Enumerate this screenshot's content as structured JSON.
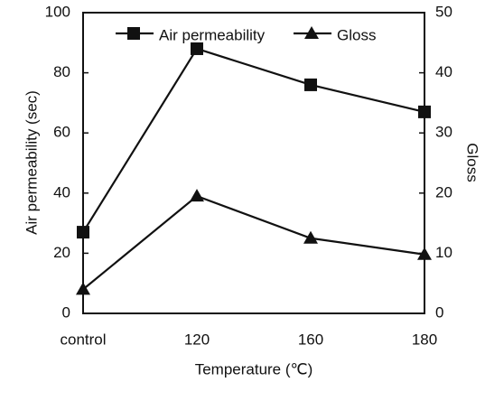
{
  "chart_data": {
    "type": "line",
    "categories": [
      "control",
      "120",
      "160",
      "180"
    ],
    "x_label": "Temperature (℃)",
    "y_label": "Air permeability (sec)",
    "y2_label": "Gloss",
    "ylim": [
      0,
      100
    ],
    "yticks": [
      0,
      20,
      40,
      60,
      80,
      100
    ],
    "y2lim": [
      0,
      50
    ],
    "y2ticks": [
      0,
      10,
      20,
      30,
      40,
      50
    ],
    "legend": "top",
    "series": [
      {
        "name": "Air permeability",
        "color": "#111111",
        "marker": "square",
        "values": [
          27,
          88,
          76,
          67
        ]
      },
      {
        "name": "Gloss",
        "color": "#111111",
        "marker": "triangle",
        "axis": "y2",
        "values": [
          4,
          19.5,
          12.5,
          9.8
        ]
      }
    ]
  }
}
